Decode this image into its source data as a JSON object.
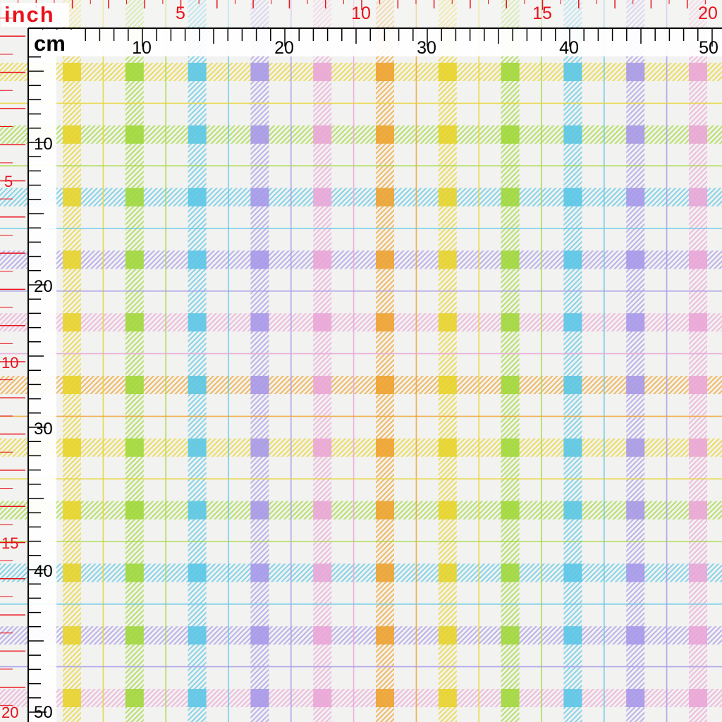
{
  "fabric": {
    "background": "#f2f2f0",
    "stripe_colors": [
      "#e8d530",
      "#a3d93f",
      "#5ec8e6",
      "#a99be9",
      "#eaa8d8",
      "#efa534",
      "#e8d530",
      "#a3d93f",
      "#5ec8e6",
      "#a99be9",
      "#eaa8d8"
    ],
    "stripe_color_names": [
      "yellow",
      "green",
      "blue",
      "purple",
      "pink",
      "orange",
      "yellow",
      "green",
      "blue",
      "purple",
      "pink"
    ],
    "row_colors": [
      "#e8d530",
      "#a3d93f",
      "#5ec8e6",
      "#a99be9",
      "#eaa8d8",
      "#efa534",
      "#e8d530",
      "#a3d93f",
      "#5ec8e6",
      "#a99be9",
      "#eaa8d8"
    ]
  },
  "ruler": {
    "inch_label": "inch",
    "cm_label": "cm",
    "inch_color": "#e8121c",
    "cm_color": "#000000",
    "inch_top_labels": [
      "5",
      "10",
      "15",
      "20"
    ],
    "cm_top_labels": [
      "10",
      "20",
      "30",
      "40",
      "50"
    ],
    "inch_left_labels": [
      "5",
      "10",
      "15",
      "20"
    ],
    "cm_left_labels": [
      "10",
      "20",
      "30",
      "40",
      "50"
    ]
  }
}
